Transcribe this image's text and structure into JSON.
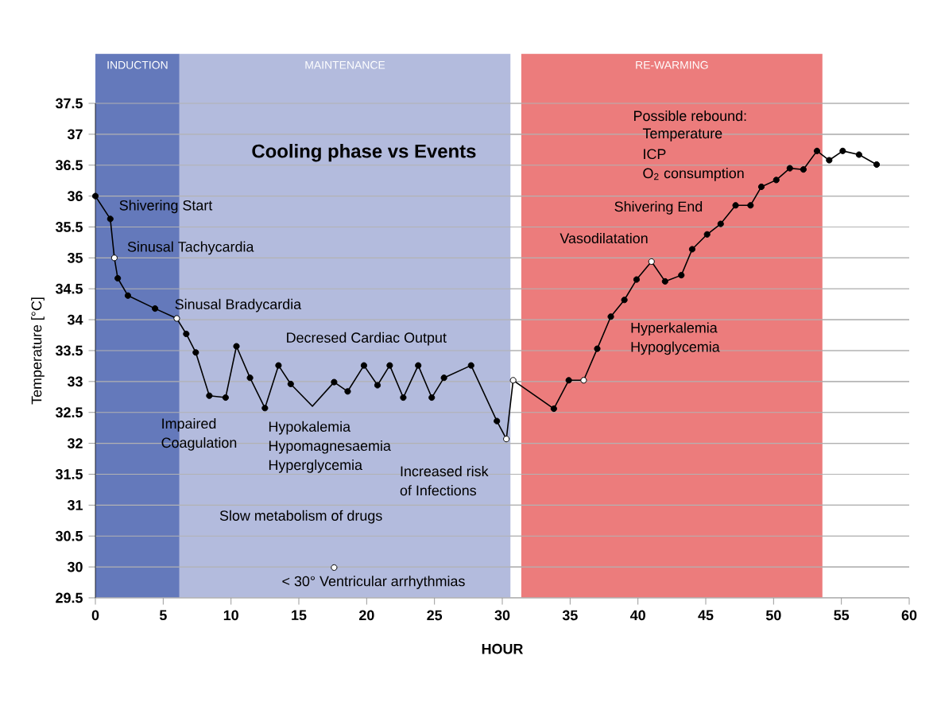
{
  "chart_data": {
    "type": "line",
    "title": "Cooling phase vs Events",
    "xlabel": "HOUR",
    "ylabel": "Temperature [°C]",
    "xlim": [
      0,
      60
    ],
    "xticks": [
      0,
      5,
      10,
      15,
      20,
      25,
      30,
      35,
      40,
      45,
      50,
      55,
      60
    ],
    "ylim": [
      29.5,
      37.5
    ],
    "yticks": [
      29.5,
      30,
      30.5,
      31,
      31.5,
      32,
      32.5,
      33,
      33.5,
      34,
      34.5,
      35,
      35.5,
      36,
      36.5,
      37,
      37.5
    ],
    "grid": "y",
    "bands": [
      {
        "axis": "x",
        "from": 0,
        "to": 6.2,
        "label": "INDUCTION",
        "color": "#6479bb"
      },
      {
        "axis": "x",
        "from": 6.2,
        "to": 30.6,
        "label": "MAINTENANCE",
        "color": "#b3bbdd"
      },
      {
        "axis": "x",
        "from": 31.4,
        "to": 53.6,
        "label": "RE-WARMING",
        "color": "#ec7c7c"
      }
    ],
    "series": [
      {
        "type": "line",
        "marker": "none",
        "color": "#000000",
        "x": [
          0,
          1.1,
          1.4,
          1.65,
          2.4,
          4.4,
          6.0,
          6.7,
          7.4,
          8.4,
          9.6,
          10.4,
          11.4,
          12.5,
          13.5,
          14.4,
          16.0,
          17.6,
          18.6,
          19.8,
          20.8,
          21.7,
          22.7,
          23.8,
          24.8,
          25.7,
          27.7,
          29.6,
          30.3,
          30.8,
          33.8,
          34.9,
          36.0,
          37.0,
          38.0,
          39.0,
          39.9,
          41.0,
          42.0,
          43.2,
          44.0,
          45.1,
          46.1,
          47.2,
          48.3,
          49.1,
          50.2,
          51.2,
          52.2,
          53.2,
          54.1,
          55.1,
          56.3,
          57.6
        ],
        "values": [
          36,
          35.63,
          35.0,
          34.67,
          34.39,
          34.18,
          34.02,
          33.77,
          33.47,
          32.77,
          32.74,
          33.57,
          33.06,
          32.57,
          33.26,
          32.96,
          32.6,
          32.99,
          32.84,
          33.26,
          32.94,
          33.26,
          32.74,
          33.26,
          32.74,
          33.06,
          33.26,
          32.36,
          32.07,
          33.02,
          32.56,
          33.02,
          33.02,
          33.53,
          34.05,
          34.32,
          34.65,
          34.94,
          34.62,
          34.72,
          35.14,
          35.38,
          35.55,
          35.85,
          35.85,
          36.15,
          36.26,
          36.45,
          36.43,
          36.73,
          36.58,
          36.73,
          36.67,
          36.51
        ]
      },
      {
        "type": "scatter",
        "marker": "circle",
        "color": "#000000",
        "x": [
          0,
          1.1,
          1.65,
          2.4,
          4.4,
          6.7,
          7.4,
          8.4,
          9.6,
          10.4,
          11.4,
          12.5,
          13.5,
          14.4,
          17.6,
          18.6,
          19.8,
          20.8,
          21.7,
          22.7,
          23.8,
          24.8,
          25.7,
          27.7,
          29.6,
          33.8,
          34.9,
          37.0,
          38.0,
          39.0,
          39.9,
          42.0,
          43.2,
          44.0,
          45.1,
          46.1,
          47.2,
          48.3,
          49.1,
          50.2,
          51.2,
          52.2,
          53.2,
          54.1,
          55.1,
          56.3,
          57.6
        ],
        "values": [
          36,
          35.63,
          34.67,
          34.39,
          34.18,
          33.77,
          33.47,
          32.77,
          32.74,
          33.57,
          33.06,
          32.57,
          33.26,
          32.96,
          32.99,
          32.84,
          33.26,
          32.94,
          33.26,
          32.74,
          33.26,
          32.74,
          33.06,
          33.26,
          32.36,
          32.56,
          33.02,
          33.53,
          34.05,
          34.32,
          34.65,
          34.62,
          34.72,
          35.14,
          35.38,
          35.55,
          35.85,
          35.85,
          36.15,
          36.26,
          36.45,
          36.43,
          36.73,
          36.58,
          36.73,
          36.67,
          36.51
        ]
      },
      {
        "type": "scatter",
        "marker": "circle",
        "color": "#ffffff",
        "x": [
          1.4,
          6.0,
          17.6,
          30.3,
          30.8,
          36.0,
          41.0
        ],
        "values": [
          35.0,
          34.02,
          29.99,
          32.07,
          33.02,
          33.02,
          34.94
        ]
      }
    ],
    "annotations": [
      "Shivering Start",
      "Sinusal Tachycardia",
      "Sinusal Bradycardia",
      "Decresed Cardiac Output",
      "Impaired",
      "Coagulation",
      "Hypokalemia",
      "Hypomagnesaemia",
      "Hyperglycemia",
      "Increased risk",
      "of Infections",
      "Slow metabolism of drugs",
      "< 30° Ventricular arrhythmias",
      "Vasodilatation",
      "Shivering End",
      "Hyperkalemia",
      "Hypoglycemia",
      "Possible rebound:",
      "Temperature",
      "ICP",
      "O$_{2}$ consumption"
    ]
  }
}
